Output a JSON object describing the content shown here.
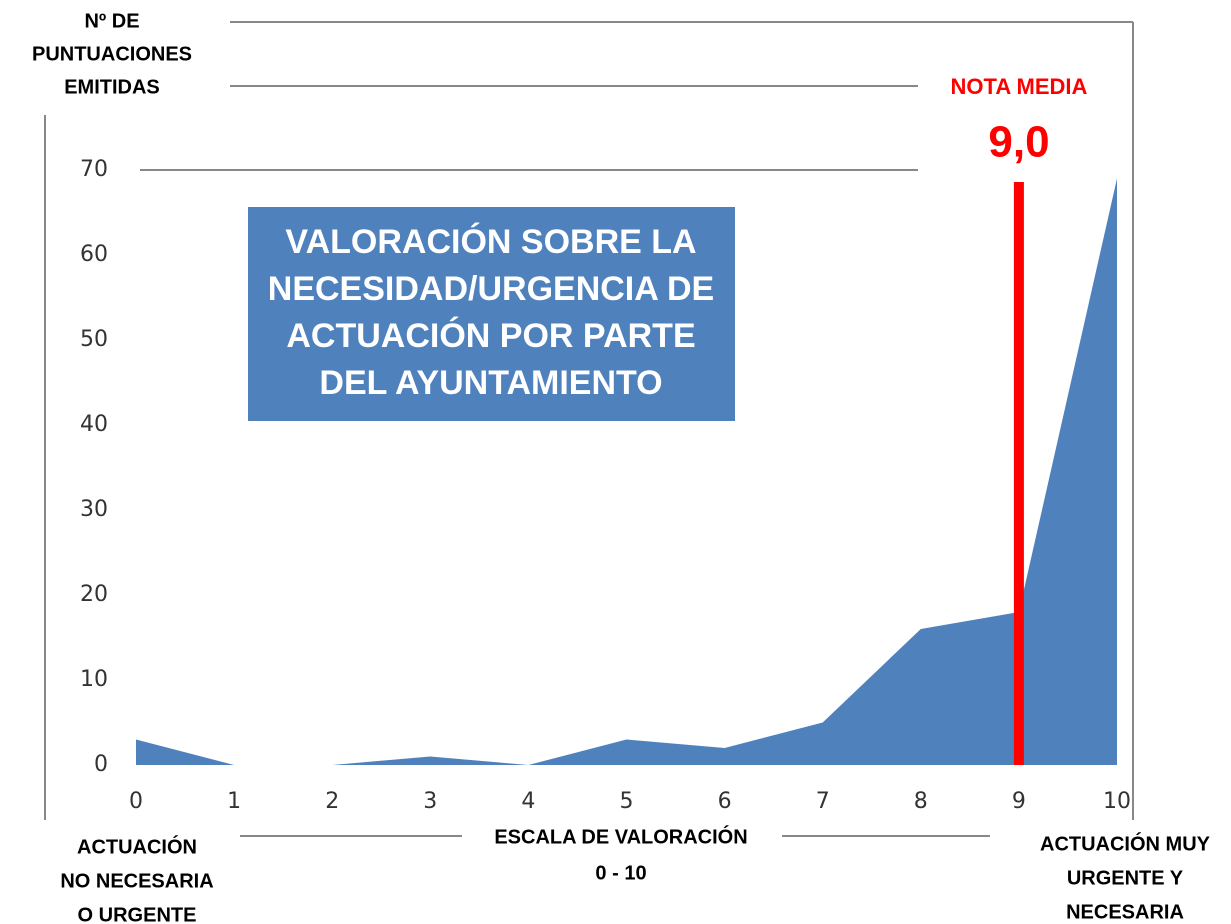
{
  "chart_data": {
    "type": "area",
    "title": [
      "VALORACIÓN SOBRE LA",
      "NECESIDAD/URGENCIA DE",
      "ACTUACIÓN POR PARTE",
      "DEL AYUNTAMIENTO"
    ],
    "y_label": [
      "Nº DE",
      "PUNTUACIONES",
      "EMITIDAS"
    ],
    "x_label": [
      "ESCALA DE VALORACIÓN",
      "0 - 10"
    ],
    "left_note": [
      "ACTUACIÓN",
      "NO NECESARIA",
      "O URGENTE"
    ],
    "right_note": [
      "ACTUACIÓN MUY",
      "URGENTE Y",
      "NECESARIA"
    ],
    "mean_label": "NOTA MEDIA",
    "mean": {
      "value": 9,
      "label": "9,0"
    },
    "mean_color": "#ff0000",
    "x": [
      0,
      1,
      2,
      3,
      4,
      5,
      6,
      7,
      8,
      9,
      10
    ],
    "values": [
      3,
      0,
      0,
      1,
      0,
      3,
      2,
      5,
      16,
      18,
      69
    ],
    "color": "#4f81bd",
    "xlim": [
      0,
      10
    ],
    "xticks": [
      0,
      1,
      2,
      3,
      4,
      5,
      6,
      7,
      8,
      9,
      10
    ],
    "ylim": [
      0,
      70
    ],
    "yticks": [
      0,
      10,
      20,
      30,
      40,
      50,
      60,
      70
    ]
  }
}
